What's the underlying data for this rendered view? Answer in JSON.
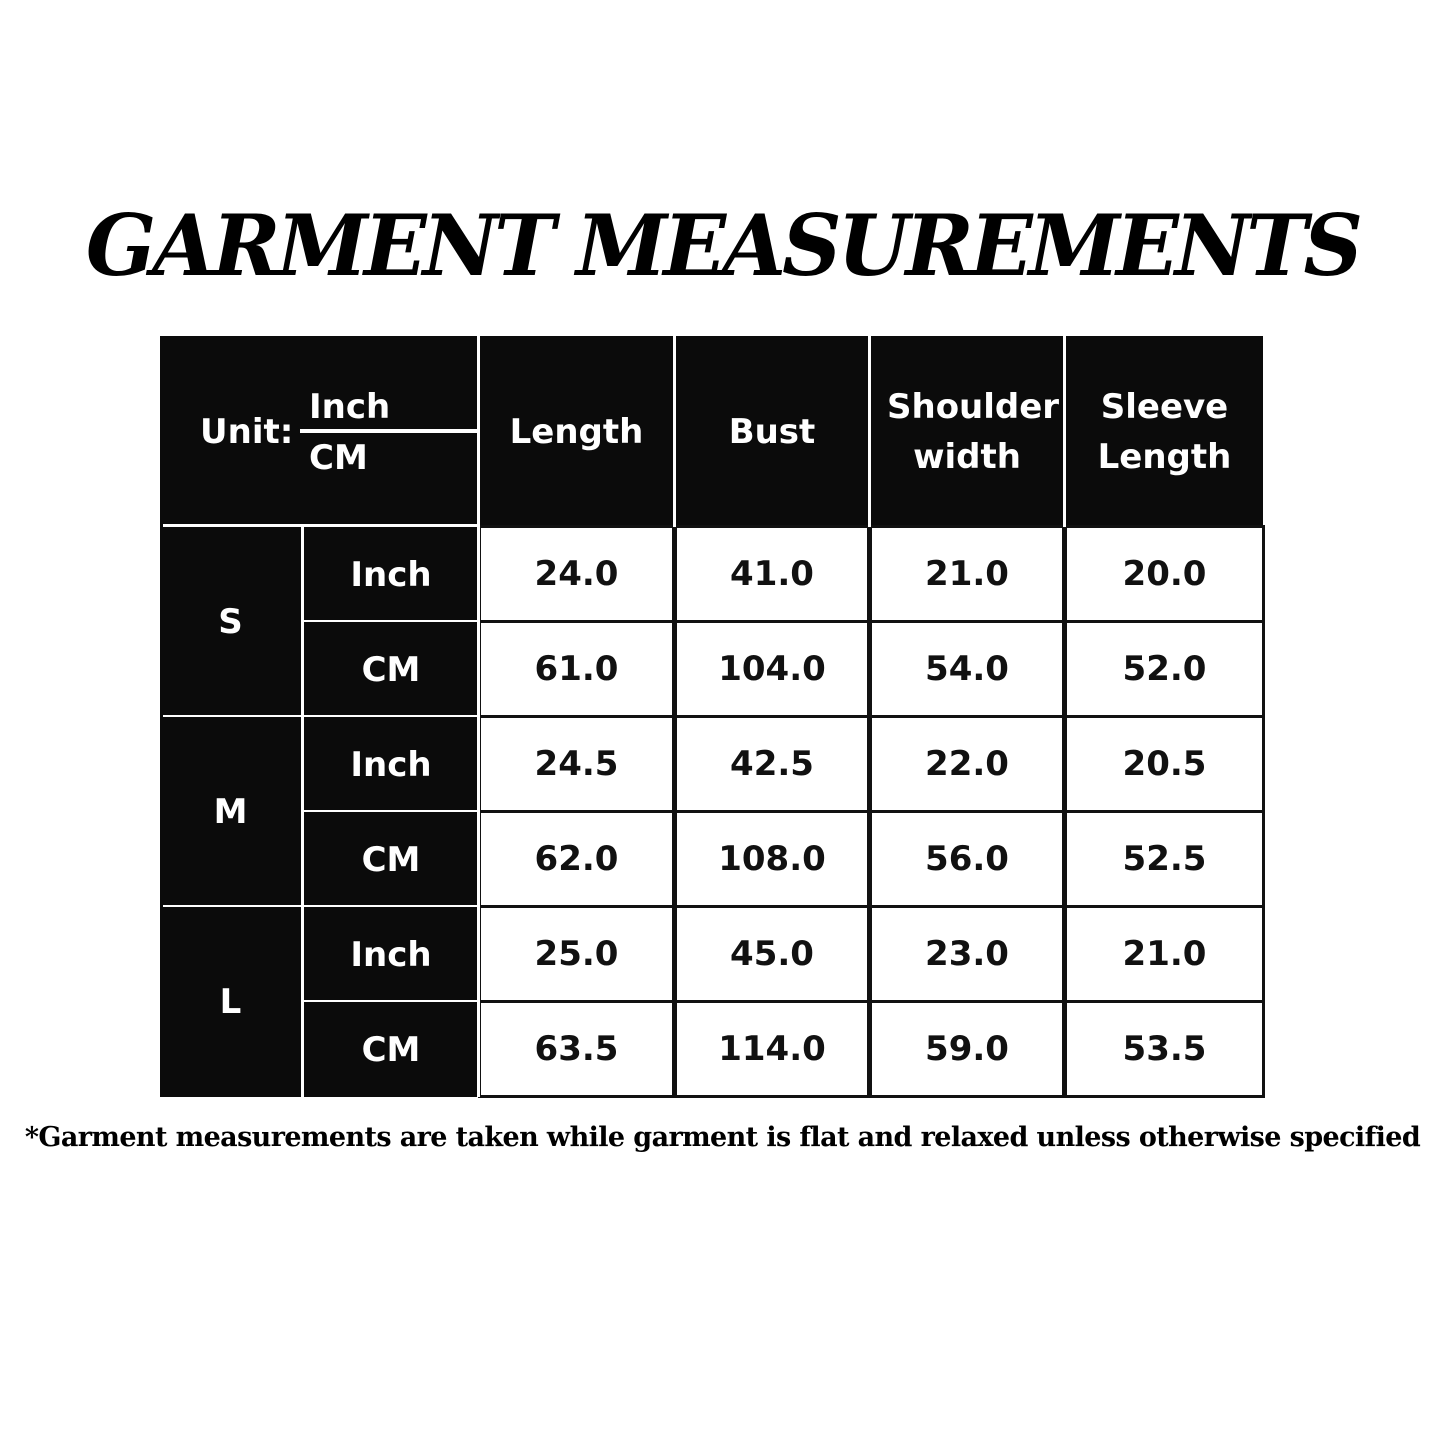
{
  "title": "GARMENT MEASUREMENTS",
  "table": {
    "unit_label": "Unit:",
    "unit_top": "Inch",
    "unit_bottom": "CM",
    "columns": [
      "Length",
      "Bust",
      "Shoulder width",
      "Sleeve Length"
    ],
    "sizes": [
      {
        "size": "S",
        "rows": [
          {
            "unit": "Inch",
            "values": [
              "24.0",
              "41.0",
              "21.0",
              "20.0"
            ]
          },
          {
            "unit": "CM",
            "values": [
              "61.0",
              "104.0",
              "54.0",
              "52.0"
            ]
          }
        ]
      },
      {
        "size": "M",
        "rows": [
          {
            "unit": "Inch",
            "values": [
              "24.5",
              "42.5",
              "22.0",
              "20.5"
            ]
          },
          {
            "unit": "CM",
            "values": [
              "62.0",
              "108.0",
              "56.0",
              "52.5"
            ]
          }
        ]
      },
      {
        "size": "L",
        "rows": [
          {
            "unit": "Inch",
            "values": [
              "25.0",
              "45.0",
              "23.0",
              "21.0"
            ]
          },
          {
            "unit": "CM",
            "values": [
              "63.5",
              "114.0",
              "59.0",
              "53.5"
            ]
          }
        ]
      }
    ]
  },
  "footnote": "*Garment measurements are taken while garment is flat and relaxed unless otherwise specified",
  "colors": {
    "header_bg": "#0b0b0b",
    "cell_bg": "#ffffff",
    "text_dark": "#111111"
  }
}
